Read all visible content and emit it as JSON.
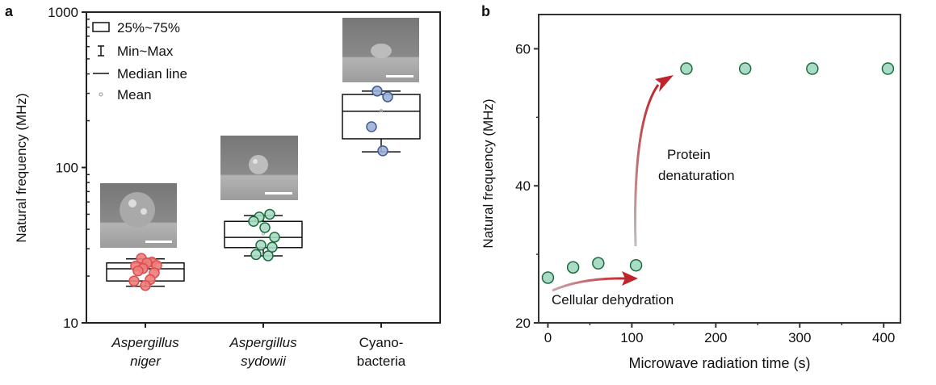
{
  "chart_data": [
    {
      "panel_label": "a",
      "type": "box",
      "ylabel": "Natural frequency (MHz)",
      "yscale": "log",
      "ylim": [
        10,
        1000
      ],
      "yticks": [
        10,
        100,
        1000
      ],
      "ytick_labels": [
        "10",
        "100",
        "1000"
      ],
      "legend": {
        "placement": "top-left",
        "items": [
          "25%~75%",
          "Min~Max",
          "Median line",
          "Mean"
        ]
      },
      "categories": [
        {
          "lines": [
            "Aspergillus",
            "niger"
          ],
          "italic": true
        },
        {
          "lines": [
            "Aspergillus",
            "sydowii"
          ],
          "italic": true
        },
        {
          "lines": [
            "Cyano-",
            "bacteria"
          ],
          "italic": false
        }
      ],
      "series": [
        {
          "color": "#f07c7c",
          "edge": "#d94f4f",
          "q1": 18.6,
          "median": 22.3,
          "q3": 24.3,
          "min": 17.2,
          "max": 25.8,
          "mean": 21.9,
          "points": [
            26,
            24.6,
            23.2,
            24.3,
            23.4,
            22.4,
            21.0,
            21.6,
            19.0,
            18.6,
            17.4
          ]
        },
        {
          "color": "#a8dcc6",
          "edge": "#1f6b3d",
          "q1": 30.5,
          "median": 35.5,
          "q3": 45,
          "min": 27,
          "max": 49,
          "mean": 37.5,
          "points": [
            48,
            50,
            45,
            41,
            35.6,
            31.6,
            30.7,
            27.5,
            27
          ]
        },
        {
          "color": "#9fb0d6",
          "edge": "#3f5a94",
          "q1": 153,
          "median": 230,
          "q3": 295,
          "min": 126,
          "max": 310,
          "mean": 232,
          "points": [
            310,
            285,
            183,
            128
          ]
        }
      ]
    },
    {
      "panel_label": "b",
      "type": "scatter",
      "xlabel": "Microwave radiation time (s)",
      "ylabel": "Natural frequency (MHz)",
      "xlim": [
        -11,
        420
      ],
      "ylim": [
        20,
        65
      ],
      "xticks": [
        0,
        100,
        200,
        300,
        400
      ],
      "yticks": [
        20,
        40,
        60
      ],
      "point_color": "#a8dcc6",
      "point_edge": "#1f6b3d",
      "x": [
        0,
        30,
        60,
        105,
        165,
        235,
        315,
        405
      ],
      "y": [
        26.6,
        28.1,
        28.7,
        28.4,
        57.1,
        57.1,
        57.1,
        57.1
      ],
      "annotations": [
        "Cellular dehydration",
        "Protein",
        "denaturation"
      ],
      "arrow_color": "#c0242a"
    }
  ]
}
